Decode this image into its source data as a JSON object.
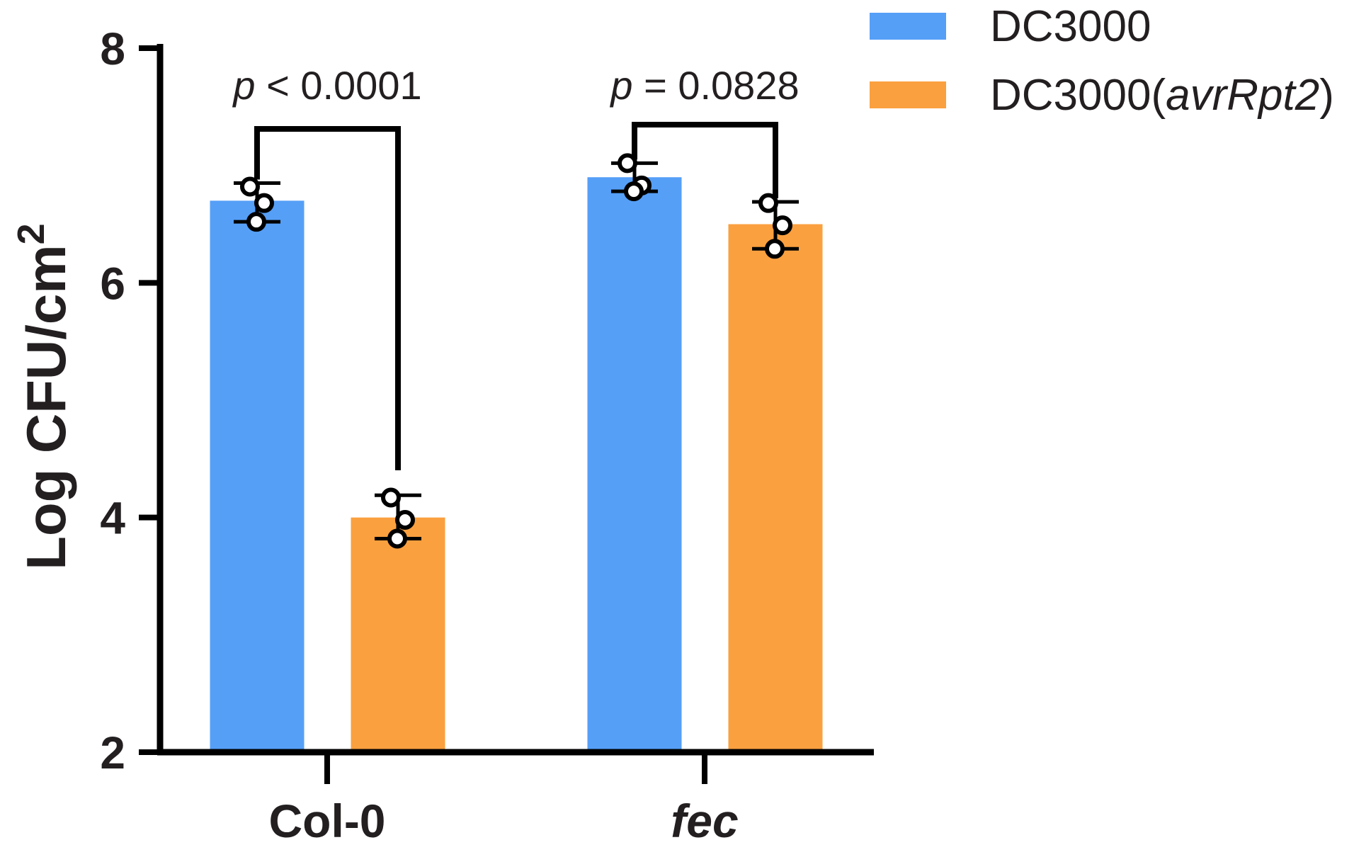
{
  "chart_data": {
    "type": "bar",
    "categories": [
      "Col-0",
      "fec"
    ],
    "category_italic": [
      false,
      true
    ],
    "ylabel": "Log CFU/cm",
    "ylabel_superscript": "2",
    "ylim": [
      2,
      8
    ],
    "yticks": [
      "2",
      "4",
      "6",
      "8"
    ],
    "grid": false,
    "legend_position": "top-right",
    "series": [
      {
        "name": "DC3000",
        "name_plain": "DC3000",
        "name_italic": "",
        "name_suffix": "",
        "color": "#559ff7",
        "values": [
          6.7,
          6.9
        ],
        "error_high": [
          6.85,
          7.02
        ],
        "error_low": [
          6.52,
          6.78
        ],
        "points": [
          [
            6.82,
            6.68,
            6.52
          ],
          [
            7.02,
            6.83,
            6.78
          ]
        ]
      },
      {
        "name": "DC3000(avrRpt2)",
        "name_plain": "DC3000(",
        "name_italic": "avrRpt2",
        "name_suffix": ")",
        "color": "#fba03f",
        "values": [
          4.0,
          6.5
        ],
        "error_high": [
          4.19,
          6.69
        ],
        "error_low": [
          3.82,
          6.29
        ],
        "points": [
          [
            4.17,
            3.98,
            3.82
          ],
          [
            6.68,
            6.49,
            6.29
          ]
        ]
      }
    ],
    "annotations": [
      {
        "group": "Col-0",
        "prefix": "p",
        "text": " < 0.0001"
      },
      {
        "group": "fec",
        "prefix": "p",
        "text": " = 0.0828"
      }
    ]
  }
}
